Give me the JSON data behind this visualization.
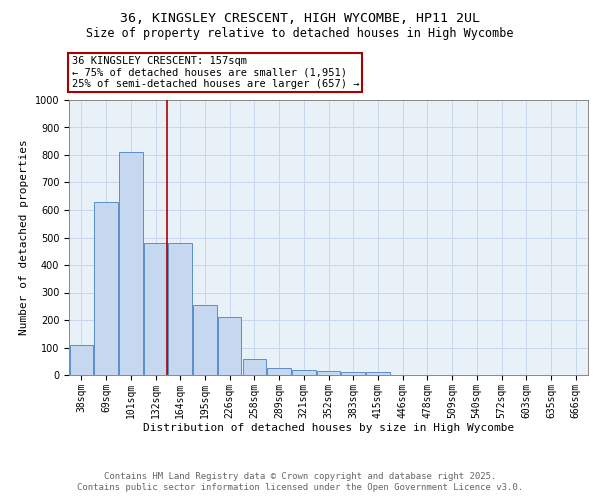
{
  "title_line1": "36, KINGSLEY CRESCENT, HIGH WYCOMBE, HP11 2UL",
  "title_line2": "Size of property relative to detached houses in High Wycombe",
  "xlabel": "Distribution of detached houses by size in High Wycombe",
  "ylabel": "Number of detached properties",
  "bar_labels": [
    "38sqm",
    "69sqm",
    "101sqm",
    "132sqm",
    "164sqm",
    "195sqm",
    "226sqm",
    "258sqm",
    "289sqm",
    "321sqm",
    "352sqm",
    "383sqm",
    "415sqm",
    "446sqm",
    "478sqm",
    "509sqm",
    "540sqm",
    "572sqm",
    "603sqm",
    "635sqm",
    "666sqm"
  ],
  "bar_values": [
    110,
    630,
    810,
    480,
    480,
    255,
    210,
    60,
    25,
    20,
    15,
    10,
    10,
    0,
    0,
    0,
    0,
    0,
    0,
    0,
    0
  ],
  "bar_color": "#c5d8f0",
  "bar_edge_color": "#5b8fc9",
  "property_line_x": 3.47,
  "property_line_label": "36 KINGSLEY CRESCENT: 157sqm",
  "annotation_line1": "← 75% of detached houses are smaller (1,951)",
  "annotation_line2": "25% of semi-detached houses are larger (657) →",
  "annotation_box_color": "#ffffff",
  "annotation_box_edge": "#aa0000",
  "red_line_color": "#aa0000",
  "ylim": [
    0,
    1000
  ],
  "yticks": [
    0,
    100,
    200,
    300,
    400,
    500,
    600,
    700,
    800,
    900,
    1000
  ],
  "grid_color": "#c8d8ec",
  "background_color": "#e8f0f8",
  "footer_line1": "Contains HM Land Registry data © Crown copyright and database right 2025.",
  "footer_line2": "Contains public sector information licensed under the Open Government Licence v3.0.",
  "title_fontsize": 9.5,
  "subtitle_fontsize": 8.5,
  "axis_label_fontsize": 8,
  "tick_fontsize": 7,
  "annotation_fontsize": 7.5,
  "footer_fontsize": 6.5
}
